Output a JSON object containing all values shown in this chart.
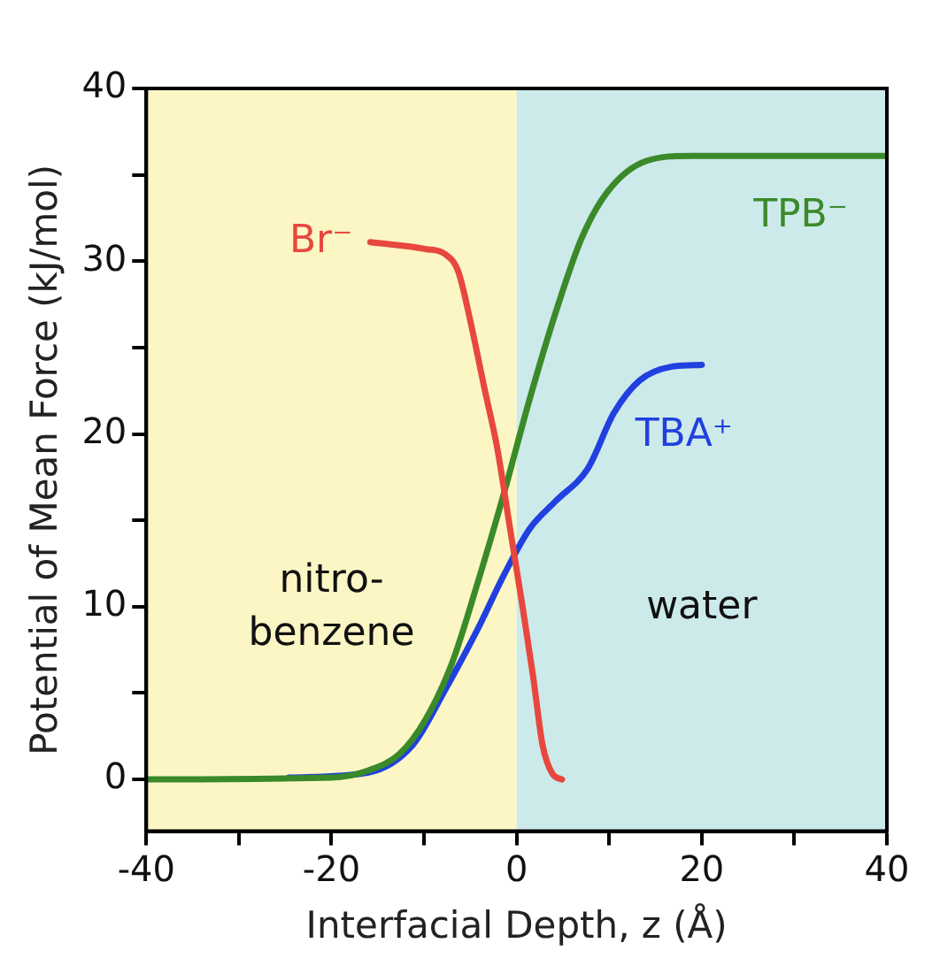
{
  "chart_data": {
    "type": "line",
    "xlabel": "Interfacial Depth, z (Å)",
    "ylabel": "Potential of Mean Force (kJ/mol)",
    "xlim": [
      -40,
      40
    ],
    "ylim": [
      -3,
      40
    ],
    "xticks": [
      -40,
      {
        "value": -30,
        "label": null
      },
      -20,
      {
        "value": -10,
        "label": null
      },
      0,
      {
        "value": 10,
        "label": null
      },
      20,
      {
        "value": 30,
        "label": null
      },
      40
    ],
    "yticks": [
      0,
      {
        "value": 5,
        "label": null
      },
      10,
      {
        "value": 15,
        "label": null
      },
      20,
      {
        "value": 25,
        "label": null
      },
      30,
      {
        "value": 35,
        "label": null
      },
      40
    ],
    "grid": false,
    "legend": false,
    "marker": "none",
    "line_style": "solid",
    "bands": [
      {
        "axis": "x",
        "from": -40,
        "to": 0,
        "label": "nitro-\nbenzene",
        "color": "#fcf6c4"
      },
      {
        "axis": "x",
        "from": 0,
        "to": 40,
        "label": "water",
        "color": "#cdeaea"
      }
    ],
    "series": [
      {
        "name": "Br⁻",
        "color": "#e8473e",
        "x": [
          -15.8,
          -9.8,
          -7.7,
          -6.3,
          -4.9,
          -3.5,
          -2.1,
          -0.7,
          0.7,
          1.8,
          2.8,
          3.9,
          4.9
        ],
        "values": [
          31.1,
          30.7,
          30.4,
          29.4,
          26.3,
          22.7,
          19.2,
          14.5,
          9.8,
          5.9,
          2,
          0.3,
          0
        ]
      },
      {
        "name": "TPB⁻",
        "color": "#3a8a2a",
        "x": [
          -40,
          -20,
          -16.1,
          -12.6,
          -9.8,
          -7,
          -4.2,
          -1.4,
          1.4,
          4.2,
          7,
          9.8,
          14,
          19,
          40
        ],
        "values": [
          0,
          0.1,
          0.5,
          1.5,
          3.5,
          6.7,
          11.4,
          16.5,
          22,
          27,
          31.3,
          34,
          35.8,
          36.1,
          36.1
        ]
      },
      {
        "name": "TBA⁺",
        "color": "#2040e0",
        "x": [
          -24.6,
          -16,
          -11.2,
          -7.7,
          -4.2,
          -1.4,
          1.4,
          4.2,
          7.7,
          10.5,
          13.3,
          16.8,
          20
        ],
        "values": [
          0.1,
          0.4,
          2,
          5.2,
          8.7,
          11.8,
          14.5,
          16.1,
          18,
          21.2,
          23.1,
          23.9,
          24
        ]
      }
    ]
  }
}
